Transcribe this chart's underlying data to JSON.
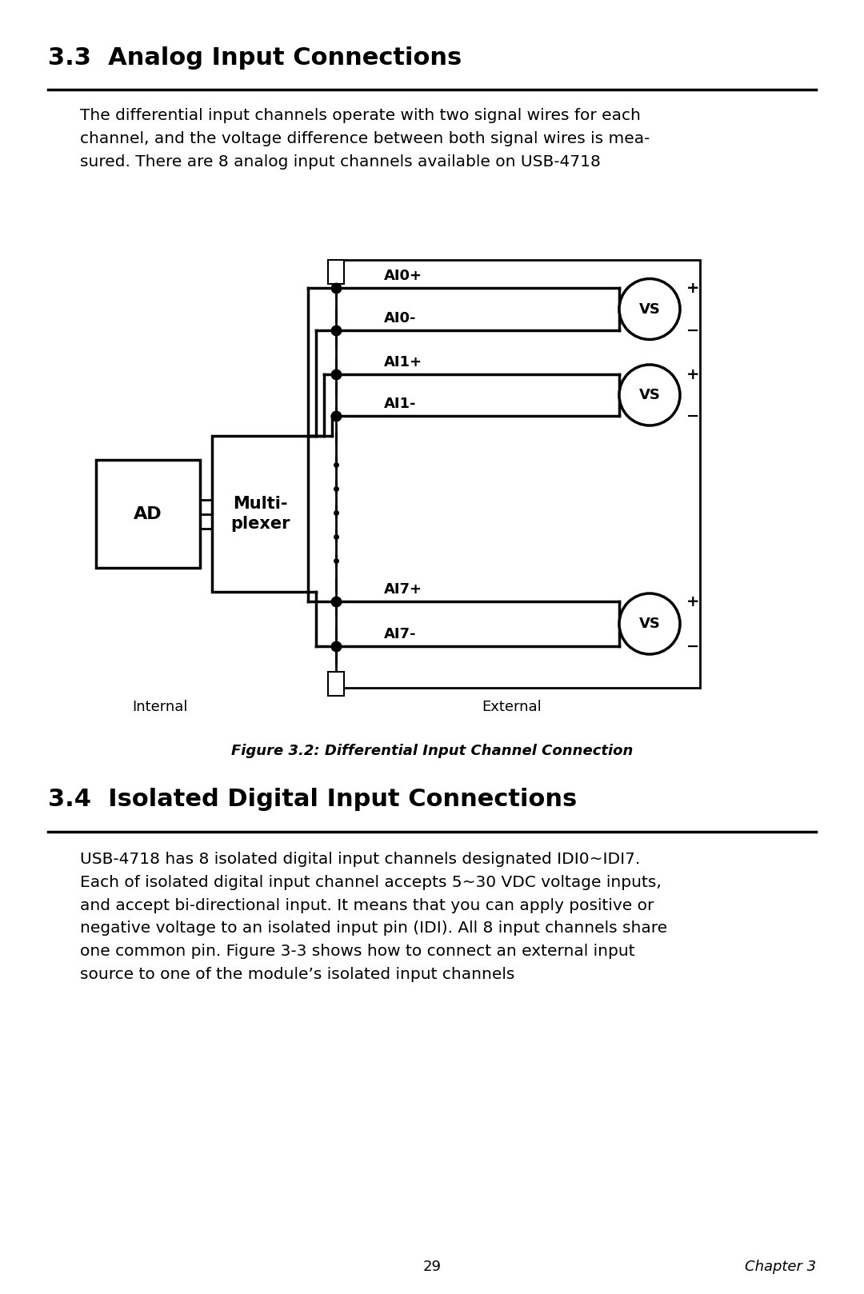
{
  "section33_title": "3.3  Analog Input Connections",
  "section33_body": "The differential input channels operate with two signal wires for each\nchannel, and the voltage difference between both signal wires is mea-\nsured. There are 8 analog input channels available on USB-4718",
  "figure_caption": "Figure 3.2: Differential Input Channel Connection",
  "section34_title": "3.4  Isolated Digital Input Connections",
  "section34_body": "USB-4718 has 8 isolated digital input channels designated IDI0~IDI7.\nEach of isolated digital input channel accepts 5~30 VDC voltage inputs,\nand accept bi-directional input. It means that you can apply positive or\nnegative voltage to an isolated input pin (IDI). All 8 input channels share\none common pin. Figure 3-3 shows how to connect an external input\nsource to one of the module’s isolated input channels",
  "page_number": "29",
  "chapter_label": "Chapter 3",
  "bg_color": "#ffffff",
  "text_color": "#000000",
  "internal_label": "Internal",
  "external_label": "External",
  "ad_label": "AD",
  "mux_label": "Multi-\nplexer",
  "channels": [
    "AI0+",
    "AI0-",
    "AI1+",
    "AI1-",
    "AI7+",
    "AI7-"
  ]
}
